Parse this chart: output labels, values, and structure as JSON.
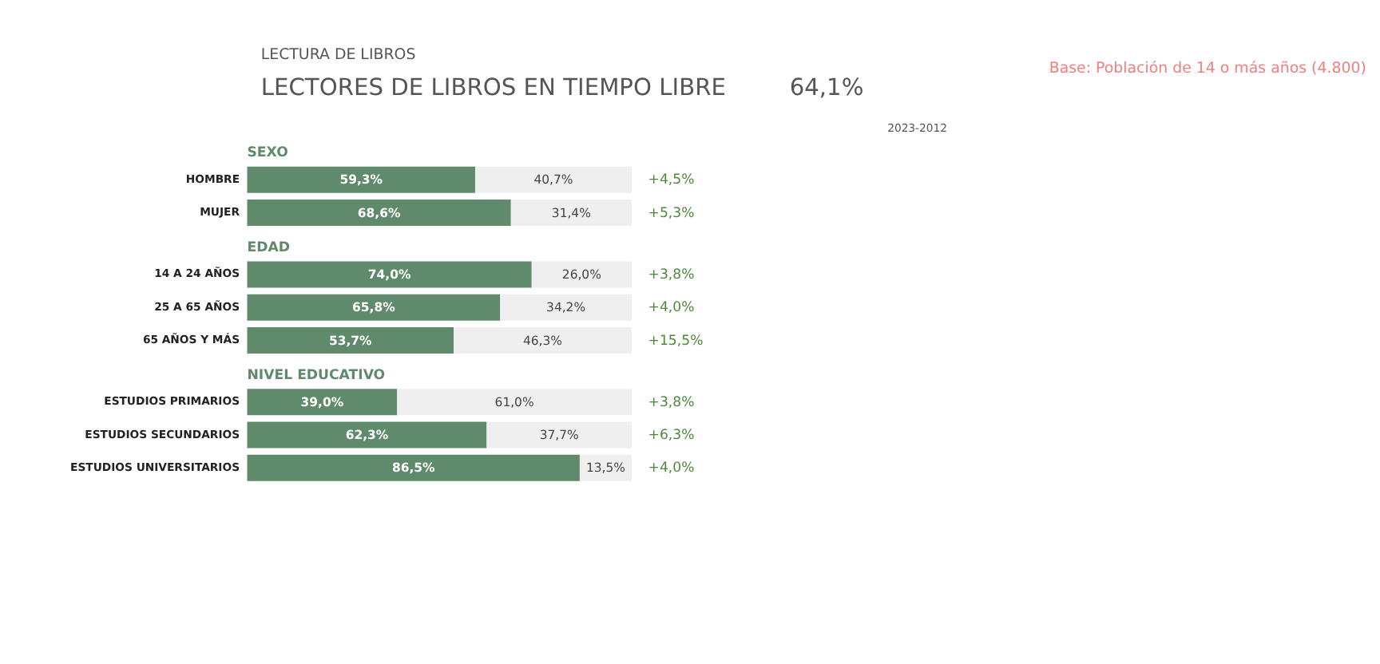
{
  "chart_data": [
    {
      "type": "other",
      "title": "LECTORES DE LIBROS EN TIEMPO LIBRE",
      "subtitle": "LECTURA DE LIBROS",
      "annotations": [
        "64,1%",
        "Base: Población de 14 o más años (4.800)",
        "2023-2012"
      ]
    },
    {
      "type": "bar",
      "orientation": "horizontal",
      "stacked": true,
      "title": "SEXO",
      "categories": [
        "HOMBRE",
        "MUJER"
      ],
      "series": [
        {
          "color": "#5f8a6b",
          "values": [
            59.3,
            68.6
          ],
          "value_labels": [
            "59,3%",
            "68,6%"
          ]
        },
        {
          "color": "#efefef",
          "values": [
            40.7,
            31.4
          ],
          "value_labels": [
            "40,7%",
            "31,4%"
          ]
        }
      ],
      "annotations": [
        "+4,5%",
        "+5,3%"
      ],
      "xlim": [
        0,
        100
      ],
      "tick_labels": "y"
    },
    {
      "type": "bar",
      "orientation": "horizontal",
      "stacked": true,
      "title": "EDAD",
      "categories": [
        "14 A 24 AÑOS",
        "25 A 65 AÑOS",
        "65 AÑOS Y MÁS"
      ],
      "series": [
        {
          "color": "#5f8a6b",
          "values": [
            74.0,
            65.8,
            53.7
          ],
          "value_labels": [
            "74,0%",
            "65,8%",
            "53,7%"
          ]
        },
        {
          "color": "#efefef",
          "values": [
            26.0,
            34.2,
            46.3
          ],
          "value_labels": [
            "26,0%",
            "34,2%",
            "46,3%"
          ]
        }
      ],
      "annotations": [
        "+3,8%",
        "+4,0%",
        "+15,5%"
      ],
      "xlim": [
        0,
        100
      ],
      "tick_labels": "y"
    },
    {
      "type": "bar",
      "orientation": "horizontal",
      "stacked": true,
      "title": "NIVEL EDUCATIVO",
      "categories": [
        "ESTUDIOS PRIMARIOS",
        "ESTUDIOS SECUNDARIOS",
        "ESTUDIOS UNIVERSITARIOS"
      ],
      "series": [
        {
          "color": "#5f8a6b",
          "values": [
            39.0,
            62.3,
            86.5
          ],
          "value_labels": [
            "39,0%",
            "62,3%",
            "86,5%"
          ]
        },
        {
          "color": "#efefef",
          "values": [
            61.0,
            37.7,
            13.5
          ],
          "value_labels": [
            "61,0%",
            "37,7%",
            "13,5%"
          ]
        }
      ],
      "annotations": [
        "+3,8%",
        "+6,3%",
        "+4,0%"
      ],
      "xlim": [
        0,
        100
      ],
      "tick_labels": "y"
    }
  ]
}
